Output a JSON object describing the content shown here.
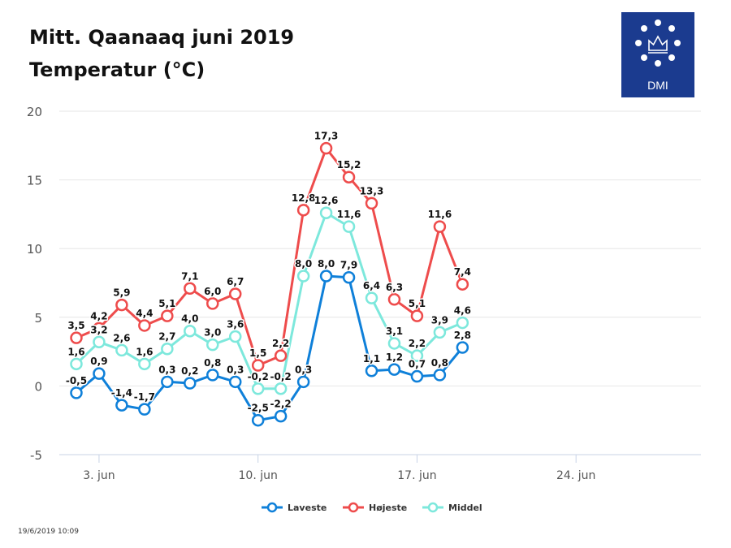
{
  "title_line1": "Mitt. Qaanaaq juni 2019",
  "title_line2": "Temperatur (°C)",
  "logo": {
    "text": "DMI",
    "color": "#1b3b8f"
  },
  "timestamp": "19/6/2019 10:09",
  "chart_data": {
    "type": "line",
    "title": "Mitt. Qaanaaq juni 2019 — Temperatur (°C)",
    "xlabel": "",
    "ylabel": "",
    "ylim": [
      -5,
      20
    ],
    "yticks": [
      -5,
      0,
      5,
      10,
      15,
      20
    ],
    "ytick_labels": [
      "-5",
      "0",
      "5",
      "10",
      "15",
      "20"
    ],
    "xlim": [
      1.25,
      29.5
    ],
    "xticks": [
      3,
      10,
      17,
      24
    ],
    "xtick_labels": [
      "3. jun",
      "10. jun",
      "17. jun",
      "24. jun"
    ],
    "grid": true,
    "legend": "bottom-center",
    "x": [
      2,
      3,
      4,
      5,
      6,
      7,
      8,
      9,
      10,
      11,
      12,
      13,
      14,
      15,
      16,
      17,
      18,
      19
    ],
    "series": [
      {
        "name": "Laveste",
        "color": "#0f80d9",
        "values": [
          -0.5,
          0.9,
          -1.4,
          -1.7,
          0.3,
          0.2,
          0.8,
          0.3,
          -2.5,
          -2.2,
          0.3,
          8.0,
          7.9,
          1.1,
          1.2,
          0.7,
          0.8,
          2.8
        ],
        "labels": [
          "-0,5",
          "0,9",
          "-1,4",
          "-1,7",
          "0,3",
          "0,2",
          "0,8",
          "0,3",
          "-2,5",
          "-2,2",
          "0,3",
          "8,0",
          "7,9",
          "1,1",
          "1,2",
          "0,7",
          "0,8",
          "2,8"
        ]
      },
      {
        "name": "Højeste",
        "color": "#ee4c4c",
        "values": [
          3.5,
          4.2,
          5.9,
          4.4,
          5.1,
          7.1,
          6.0,
          6.7,
          1.5,
          2.2,
          12.8,
          17.3,
          15.2,
          13.3,
          6.3,
          5.1,
          11.6,
          7.4
        ],
        "labels": [
          "3,5",
          "4,2",
          "5,9",
          "4,4",
          "5,1",
          "7,1",
          "6,0",
          "6,7",
          "1,5",
          "2,2",
          "12,8",
          "17,3",
          "15,2",
          "13,3",
          "6,3",
          "5,1",
          "11,6",
          "7,4"
        ]
      },
      {
        "name": "Middel",
        "color": "#7de8dc",
        "values": [
          1.6,
          3.2,
          2.6,
          1.6,
          2.7,
          4.0,
          3.0,
          3.6,
          -0.2,
          -0.2,
          8.0,
          12.6,
          11.6,
          6.4,
          3.1,
          2.2,
          3.9,
          4.6
        ],
        "labels": [
          "1,6",
          "3,2",
          "2,6",
          "1,6",
          "2,7",
          "4,0",
          "3,0",
          "3,6",
          "-0,2",
          "-0,2",
          "8,0",
          "12,6",
          "11,6",
          "6,4",
          "3,1",
          "2,2",
          "3,9",
          "4,6"
        ]
      }
    ]
  }
}
